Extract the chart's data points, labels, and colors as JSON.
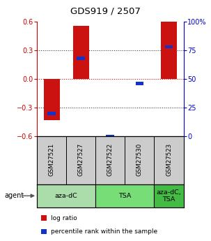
{
  "title": "GDS919 / 2507",
  "samples": [
    "GSM27521",
    "GSM27527",
    "GSM27522",
    "GSM27530",
    "GSM27523"
  ],
  "log_ratios": [
    -0.43,
    0.56,
    0.0,
    0.0,
    0.6
  ],
  "percentile_ranks_pct": [
    20,
    68,
    0,
    46,
    78
  ],
  "agents": [
    {
      "label": "aza-dC",
      "start": 0,
      "end": 2,
      "color": "#aaeaaa"
    },
    {
      "label": "TSA",
      "start": 2,
      "end": 4,
      "color": "#aaeaaa"
    },
    {
      "label": "aza-dC,\nTSA",
      "start": 4,
      "end": 5,
      "color": "#55cc55"
    }
  ],
  "ylim_left": [
    -0.6,
    0.6
  ],
  "yticks_left": [
    -0.6,
    -0.3,
    0.0,
    0.3,
    0.6
  ],
  "yticks_right_vals": [
    0,
    25,
    50,
    75,
    100
  ],
  "yticks_right_labels": [
    "0",
    "25",
    "50",
    "75",
    "100%"
  ],
  "red_color": "#cc1111",
  "blue_color": "#1133cc",
  "left_axis_color": "#cc0000",
  "right_axis_color": "#0000cc",
  "legend_red_label": "log ratio",
  "legend_blue_label": "percentile rank within the sample",
  "sample_bg": "#cccccc",
  "agent_colors": [
    "#aaeaaa",
    "#77dd77",
    "#44cc44"
  ]
}
